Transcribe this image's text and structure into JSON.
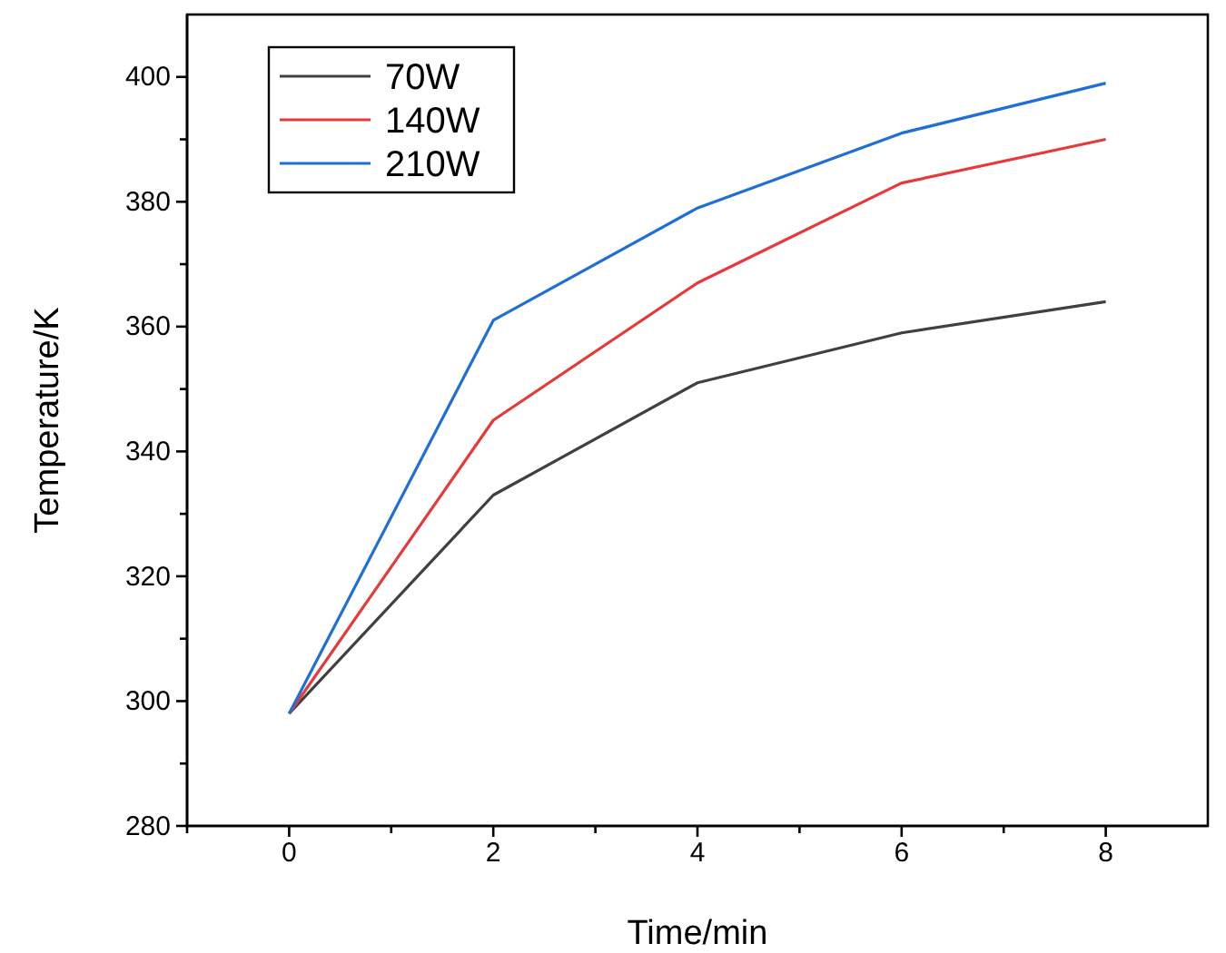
{
  "chart_data": {
    "type": "line",
    "xlabel": "Time/min",
    "ylabel": "Temperature/K",
    "x": [
      0,
      2,
      4,
      6,
      8
    ],
    "series": [
      {
        "name": "70W",
        "color": "#404040",
        "values": [
          298,
          333,
          351,
          359,
          364
        ]
      },
      {
        "name": "140W",
        "color": "#e8393a",
        "values": [
          298,
          345,
          367,
          383,
          390
        ]
      },
      {
        "name": "210W",
        "color": "#1f6fd6",
        "values": [
          298,
          361,
          379,
          391,
          399
        ]
      }
    ],
    "xlim": [
      -1,
      9
    ],
    "xticks": [
      {
        "value": -1,
        "label": null
      },
      0,
      {
        "value": 1,
        "label": null
      },
      2,
      {
        "value": 3,
        "label": null
      },
      4,
      {
        "value": 5,
        "label": null
      },
      6,
      {
        "value": 7,
        "label": null
      },
      8
    ],
    "ylim": [
      280,
      410
    ],
    "yticks": [
      280,
      {
        "value": 290,
        "label": null
      },
      300,
      {
        "value": 310,
        "label": null
      },
      320,
      {
        "value": 330,
        "label": null
      },
      340,
      {
        "value": 350,
        "label": null
      },
      360,
      {
        "value": 370,
        "label": null
      },
      380,
      {
        "value": 390,
        "label": null
      },
      400
    ],
    "grid": false,
    "legend": "top left",
    "marker": "none",
    "line_style": "solid"
  }
}
